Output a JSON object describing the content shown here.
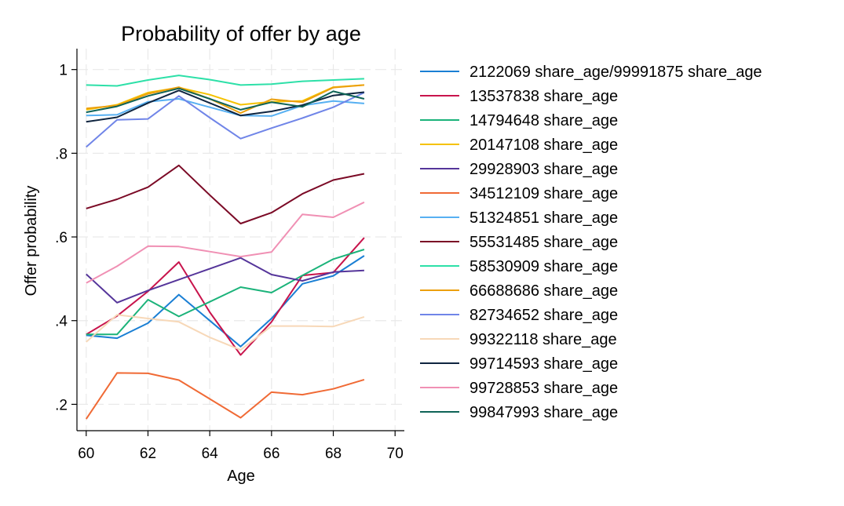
{
  "chart_data": {
    "type": "line",
    "title": "Probability of offer by age",
    "xlabel": "Age",
    "ylabel": "Offer probability",
    "xlim": [
      59.7,
      70.3
    ],
    "ylim": [
      0.137,
      1.05
    ],
    "xticks": [
      60,
      62,
      64,
      66,
      68,
      70
    ],
    "xtick_labels": [
      "60",
      "62",
      "64",
      "66",
      "68",
      "70"
    ],
    "yticks": [
      0.2,
      0.4,
      0.6,
      0.8,
      1.0
    ],
    "ytick_labels": [
      ".2",
      ".4",
      ".6",
      ".8",
      "1"
    ],
    "grid": true,
    "legend_position": "right",
    "x": [
      60,
      61,
      62,
      63,
      64,
      65,
      66,
      67,
      68,
      69
    ],
    "series": [
      {
        "name": "2122069 share_age/99991875 share_age",
        "color": "#1a7fd4",
        "values": [
          0.365,
          0.358,
          0.394,
          0.462,
          0.4,
          0.338,
          0.405,
          0.488,
          0.507,
          0.555
        ]
      },
      {
        "name": "13537838 share_age",
        "color": "#c8144c",
        "values": [
          0.367,
          0.411,
          0.47,
          0.54,
          0.42,
          0.318,
          0.397,
          0.508,
          0.515,
          0.598
        ]
      },
      {
        "name": "14794648 share_age",
        "color": "#1bb37a",
        "values": [
          0.367,
          0.367,
          0.45,
          0.41,
          0.445,
          0.48,
          0.467,
          0.508,
          0.547,
          0.57
        ]
      },
      {
        "name": "20147108 share_age",
        "color": "#f5c200",
        "values": [
          0.904,
          0.916,
          0.945,
          0.957,
          0.94,
          0.916,
          0.923,
          0.925,
          0.958,
          0.963
        ]
      },
      {
        "name": "29928903 share_age",
        "color": "#55359a",
        "values": [
          0.511,
          0.443,
          0.472,
          0.498,
          0.524,
          0.55,
          0.51,
          0.495,
          0.516,
          0.52
        ]
      },
      {
        "name": "34512109 share_age",
        "color": "#f06a35",
        "values": [
          0.165,
          0.275,
          0.274,
          0.258,
          0.213,
          0.168,
          0.229,
          0.223,
          0.237,
          0.259
        ]
      },
      {
        "name": "51324851 share_age",
        "color": "#57b0f2",
        "values": [
          0.89,
          0.892,
          0.923,
          0.93,
          0.91,
          0.89,
          0.889,
          0.914,
          0.925,
          0.919
        ]
      },
      {
        "name": "55531485 share_age",
        "color": "#7b0a26",
        "values": [
          0.668,
          0.69,
          0.719,
          0.771,
          0.7,
          0.632,
          0.658,
          0.703,
          0.736,
          0.751
        ]
      },
      {
        "name": "58530909 share_age",
        "color": "#2de0a8",
        "values": [
          0.963,
          0.961,
          0.975,
          0.986,
          0.976,
          0.963,
          0.965,
          0.972,
          0.975,
          0.978
        ]
      },
      {
        "name": "66688686 share_age",
        "color": "#eca00e",
        "values": [
          0.907,
          0.914,
          0.942,
          0.958,
          0.93,
          0.896,
          0.929,
          0.922,
          0.957,
          0.963
        ]
      },
      {
        "name": "82734652 share_age",
        "color": "#7085e8",
        "values": [
          0.815,
          0.88,
          0.882,
          0.937,
          0.885,
          0.835,
          0.86,
          0.884,
          0.91,
          0.945
        ]
      },
      {
        "name": "99322118 share_age",
        "color": "#f7d8b8",
        "values": [
          0.349,
          0.414,
          0.405,
          0.397,
          0.36,
          0.33,
          0.387,
          0.387,
          0.386,
          0.409
        ]
      },
      {
        "name": "99714593 share_age",
        "color": "#0f2540",
        "values": [
          0.875,
          0.886,
          0.92,
          0.95,
          0.92,
          0.89,
          0.9,
          0.915,
          0.938,
          0.946
        ]
      },
      {
        "name": "99728853 share_age",
        "color": "#f090b4",
        "values": [
          0.49,
          0.53,
          0.578,
          0.577,
          0.565,
          0.553,
          0.564,
          0.654,
          0.647,
          0.683
        ]
      },
      {
        "name": "99847993 share_age",
        "color": "#0f6457",
        "values": [
          0.898,
          0.912,
          0.937,
          0.955,
          0.93,
          0.904,
          0.922,
          0.911,
          0.948,
          0.93
        ]
      }
    ]
  }
}
